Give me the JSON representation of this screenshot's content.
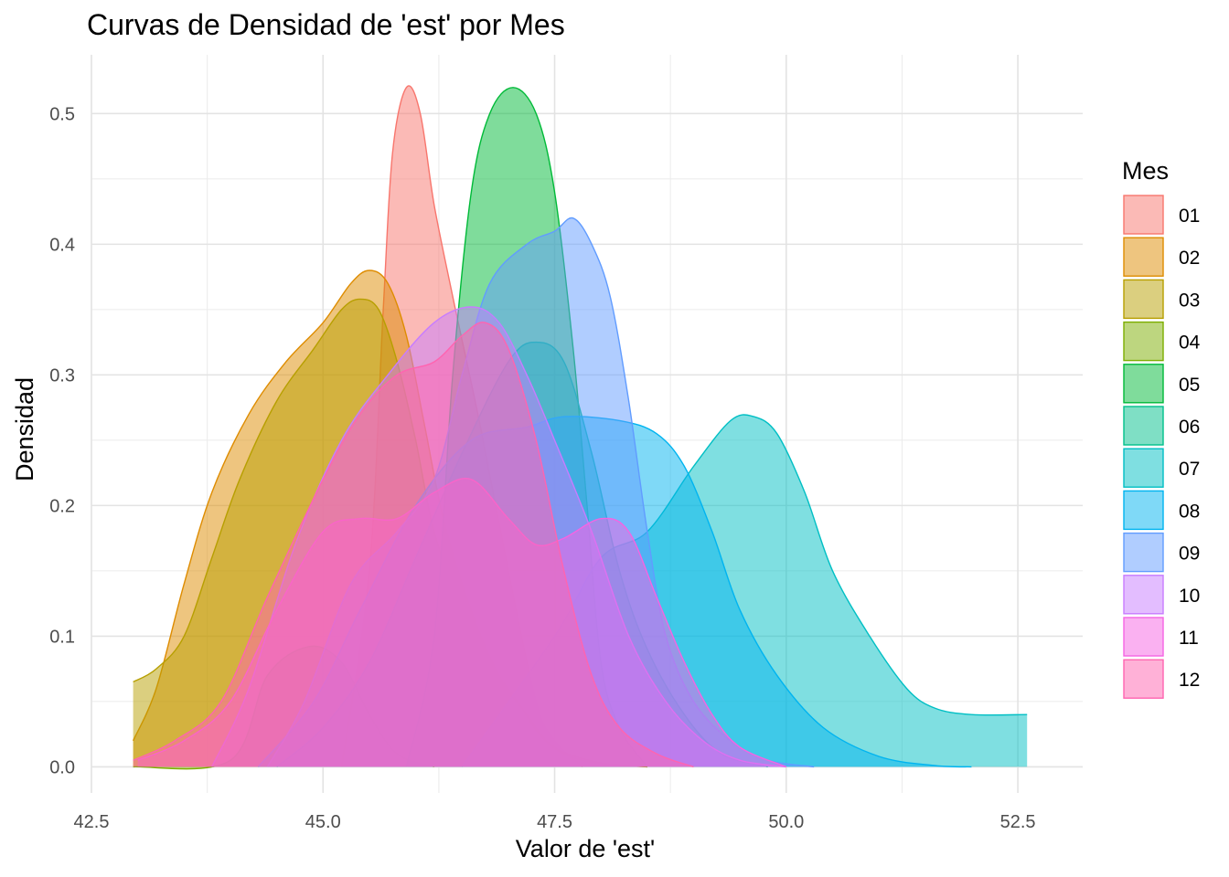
{
  "chart_data": {
    "type": "area",
    "title": "Curvas de Densidad de 'est' por Mes",
    "xlabel": "Valor de 'est'",
    "ylabel": "Densidad",
    "xlim": [
      42.5,
      53.2
    ],
    "ylim": [
      -0.02,
      0.545
    ],
    "x_ticks": [
      "42.5",
      "45.0",
      "47.5",
      "50.0",
      "52.5"
    ],
    "x_tick_values": [
      42.5,
      45.0,
      47.5,
      50.0,
      52.5
    ],
    "y_ticks": [
      "0.0",
      "0.1",
      "0.2",
      "0.3",
      "0.4",
      "0.5"
    ],
    "y_tick_values": [
      0.0,
      0.1,
      0.2,
      0.3,
      0.4,
      0.5
    ],
    "grid": true,
    "legend": {
      "title": "Mes",
      "placement": "right"
    },
    "series": [
      {
        "name": "01",
        "color": "#F8766D",
        "points": [
          [
            45.2,
            0
          ],
          [
            45.5,
            0.15
          ],
          [
            45.65,
            0.35
          ],
          [
            45.75,
            0.47
          ],
          [
            45.9,
            0.52
          ],
          [
            46.05,
            0.5
          ],
          [
            46.2,
            0.43
          ],
          [
            46.4,
            0.36
          ],
          [
            46.7,
            0.26
          ],
          [
            47.0,
            0.15
          ],
          [
            47.3,
            0.05
          ],
          [
            47.5,
            0.02
          ],
          [
            47.8,
            0
          ]
        ]
      },
      {
        "name": "02",
        "color": "#DE8C00",
        "points": [
          [
            42.95,
            0.02
          ],
          [
            43.2,
            0.06
          ],
          [
            43.5,
            0.14
          ],
          [
            43.8,
            0.21
          ],
          [
            44.2,
            0.27
          ],
          [
            44.6,
            0.31
          ],
          [
            45.0,
            0.34
          ],
          [
            45.3,
            0.37
          ],
          [
            45.5,
            0.38
          ],
          [
            45.7,
            0.37
          ],
          [
            45.9,
            0.33
          ],
          [
            46.1,
            0.26
          ],
          [
            46.3,
            0.19
          ],
          [
            46.6,
            0.12
          ],
          [
            46.9,
            0.07
          ],
          [
            47.2,
            0.04
          ],
          [
            47.5,
            0.015
          ],
          [
            48.0,
            0.003
          ],
          [
            48.5,
            0
          ]
        ]
      },
      {
        "name": "03",
        "color": "#B79F00",
        "points": [
          [
            42.95,
            0.065
          ],
          [
            43.2,
            0.075
          ],
          [
            43.5,
            0.1
          ],
          [
            43.8,
            0.16
          ],
          [
            44.1,
            0.22
          ],
          [
            44.5,
            0.28
          ],
          [
            44.9,
            0.32
          ],
          [
            45.2,
            0.35
          ],
          [
            45.4,
            0.358
          ],
          [
            45.6,
            0.35
          ],
          [
            45.8,
            0.31
          ],
          [
            46.0,
            0.25
          ],
          [
            46.2,
            0.18
          ],
          [
            46.5,
            0.12
          ],
          [
            46.8,
            0.08
          ],
          [
            47.1,
            0.05
          ],
          [
            47.4,
            0.02
          ],
          [
            47.8,
            0.005
          ],
          [
            48.5,
            0
          ]
        ]
      },
      {
        "name": "04",
        "color": "#7CAE00",
        "points": [
          [
            42.95,
            0
          ],
          [
            44.0,
            0.005
          ],
          [
            44.4,
            0.07
          ],
          [
            44.85,
            0.092
          ],
          [
            45.2,
            0.08
          ],
          [
            45.5,
            0.04
          ],
          [
            45.8,
            0.01
          ],
          [
            46.2,
            0
          ]
        ]
      },
      {
        "name": "05",
        "color": "#00BA38",
        "points": [
          [
            45.9,
            0
          ],
          [
            46.2,
            0.1
          ],
          [
            46.4,
            0.3
          ],
          [
            46.6,
            0.44
          ],
          [
            46.8,
            0.5
          ],
          [
            47.05,
            0.52
          ],
          [
            47.3,
            0.5
          ],
          [
            47.5,
            0.44
          ],
          [
            47.7,
            0.32
          ],
          [
            47.85,
            0.2
          ],
          [
            48.0,
            0.08
          ],
          [
            48.2,
            0.03
          ],
          [
            48.5,
            0
          ]
        ]
      },
      {
        "name": "06",
        "color": "#00C08B",
        "points": [
          [
            44.5,
            0
          ],
          [
            45.0,
            0.03
          ],
          [
            45.5,
            0.08
          ],
          [
            46.0,
            0.16
          ],
          [
            46.5,
            0.24
          ],
          [
            47.0,
            0.31
          ],
          [
            47.3,
            0.325
          ],
          [
            47.6,
            0.31
          ],
          [
            47.9,
            0.24
          ],
          [
            48.2,
            0.15
          ],
          [
            48.5,
            0.09
          ],
          [
            48.9,
            0.04
          ],
          [
            49.3,
            0.01
          ],
          [
            49.8,
            0
          ]
        ]
      },
      {
        "name": "07",
        "color": "#00BFC4",
        "points": [
          [
            46.5,
            0
          ],
          [
            47.5,
            0.1
          ],
          [
            48.0,
            0.16
          ],
          [
            48.5,
            0.18
          ],
          [
            49.0,
            0.23
          ],
          [
            49.4,
            0.265
          ],
          [
            49.65,
            0.268
          ],
          [
            49.9,
            0.255
          ],
          [
            50.2,
            0.21
          ],
          [
            50.5,
            0.15
          ],
          [
            50.9,
            0.1
          ],
          [
            51.3,
            0.06
          ],
          [
            51.6,
            0.045
          ],
          [
            52.0,
            0.04
          ],
          [
            52.6,
            0.04
          ]
        ]
      },
      {
        "name": "08",
        "color": "#00B4F0",
        "points": [
          [
            44.3,
            0
          ],
          [
            44.9,
            0.05
          ],
          [
            45.4,
            0.12
          ],
          [
            46.0,
            0.2
          ],
          [
            46.6,
            0.25
          ],
          [
            47.2,
            0.26
          ],
          [
            47.6,
            0.268
          ],
          [
            48.2,
            0.265
          ],
          [
            48.6,
            0.255
          ],
          [
            48.9,
            0.23
          ],
          [
            49.2,
            0.18
          ],
          [
            49.5,
            0.12
          ],
          [
            49.9,
            0.07
          ],
          [
            50.4,
            0.03
          ],
          [
            51.0,
            0.008
          ],
          [
            51.6,
            0.001
          ],
          [
            52.0,
            0
          ]
        ]
      },
      {
        "name": "09",
        "color": "#619CFF",
        "points": [
          [
            44.4,
            0
          ],
          [
            44.8,
            0.05
          ],
          [
            45.3,
            0.14
          ],
          [
            45.8,
            0.18
          ],
          [
            46.2,
            0.22
          ],
          [
            46.5,
            0.3
          ],
          [
            46.8,
            0.37
          ],
          [
            47.2,
            0.4
          ],
          [
            47.5,
            0.41
          ],
          [
            47.7,
            0.42
          ],
          [
            47.9,
            0.4
          ],
          [
            48.1,
            0.36
          ],
          [
            48.3,
            0.28
          ],
          [
            48.5,
            0.18
          ],
          [
            48.7,
            0.1
          ],
          [
            49.0,
            0.05
          ],
          [
            49.4,
            0.02
          ],
          [
            49.8,
            0.005
          ],
          [
            50.3,
            0
          ]
        ]
      },
      {
        "name": "10",
        "color": "#C77CFF",
        "points": [
          [
            43.8,
            0
          ],
          [
            44.2,
            0.06
          ],
          [
            44.7,
            0.17
          ],
          [
            45.2,
            0.25
          ],
          [
            45.7,
            0.3
          ],
          [
            46.2,
            0.34
          ],
          [
            46.6,
            0.352
          ],
          [
            46.9,
            0.34
          ],
          [
            47.2,
            0.3
          ],
          [
            47.5,
            0.25
          ],
          [
            47.9,
            0.18
          ],
          [
            48.3,
            0.1
          ],
          [
            48.7,
            0.05
          ],
          [
            49.1,
            0.02
          ],
          [
            49.5,
            0.005
          ],
          [
            50.0,
            0
          ]
        ]
      },
      {
        "name": "11",
        "color": "#F564E3",
        "points": [
          [
            43.0,
            0.005
          ],
          [
            43.5,
            0.02
          ],
          [
            44.0,
            0.05
          ],
          [
            44.5,
            0.12
          ],
          [
            45.0,
            0.18
          ],
          [
            45.4,
            0.19
          ],
          [
            45.8,
            0.19
          ],
          [
            46.2,
            0.21
          ],
          [
            46.6,
            0.22
          ],
          [
            47.0,
            0.19
          ],
          [
            47.3,
            0.17
          ],
          [
            47.6,
            0.175
          ],
          [
            48.0,
            0.19
          ],
          [
            48.3,
            0.18
          ],
          [
            48.6,
            0.13
          ],
          [
            48.9,
            0.08
          ],
          [
            49.2,
            0.04
          ],
          [
            49.5,
            0.015
          ],
          [
            50.0,
            0
          ]
        ]
      },
      {
        "name": "12",
        "color": "#FF64B0",
        "points": [
          [
            42.95,
            0.005
          ],
          [
            43.4,
            0.02
          ],
          [
            43.9,
            0.05
          ],
          [
            44.4,
            0.13
          ],
          [
            45.0,
            0.22
          ],
          [
            45.4,
            0.27
          ],
          [
            45.8,
            0.3
          ],
          [
            46.2,
            0.31
          ],
          [
            46.5,
            0.33
          ],
          [
            46.75,
            0.34
          ],
          [
            47.0,
            0.32
          ],
          [
            47.3,
            0.25
          ],
          [
            47.6,
            0.15
          ],
          [
            47.9,
            0.07
          ],
          [
            48.2,
            0.03
          ],
          [
            48.6,
            0.01
          ],
          [
            49.0,
            0
          ]
        ]
      }
    ]
  }
}
